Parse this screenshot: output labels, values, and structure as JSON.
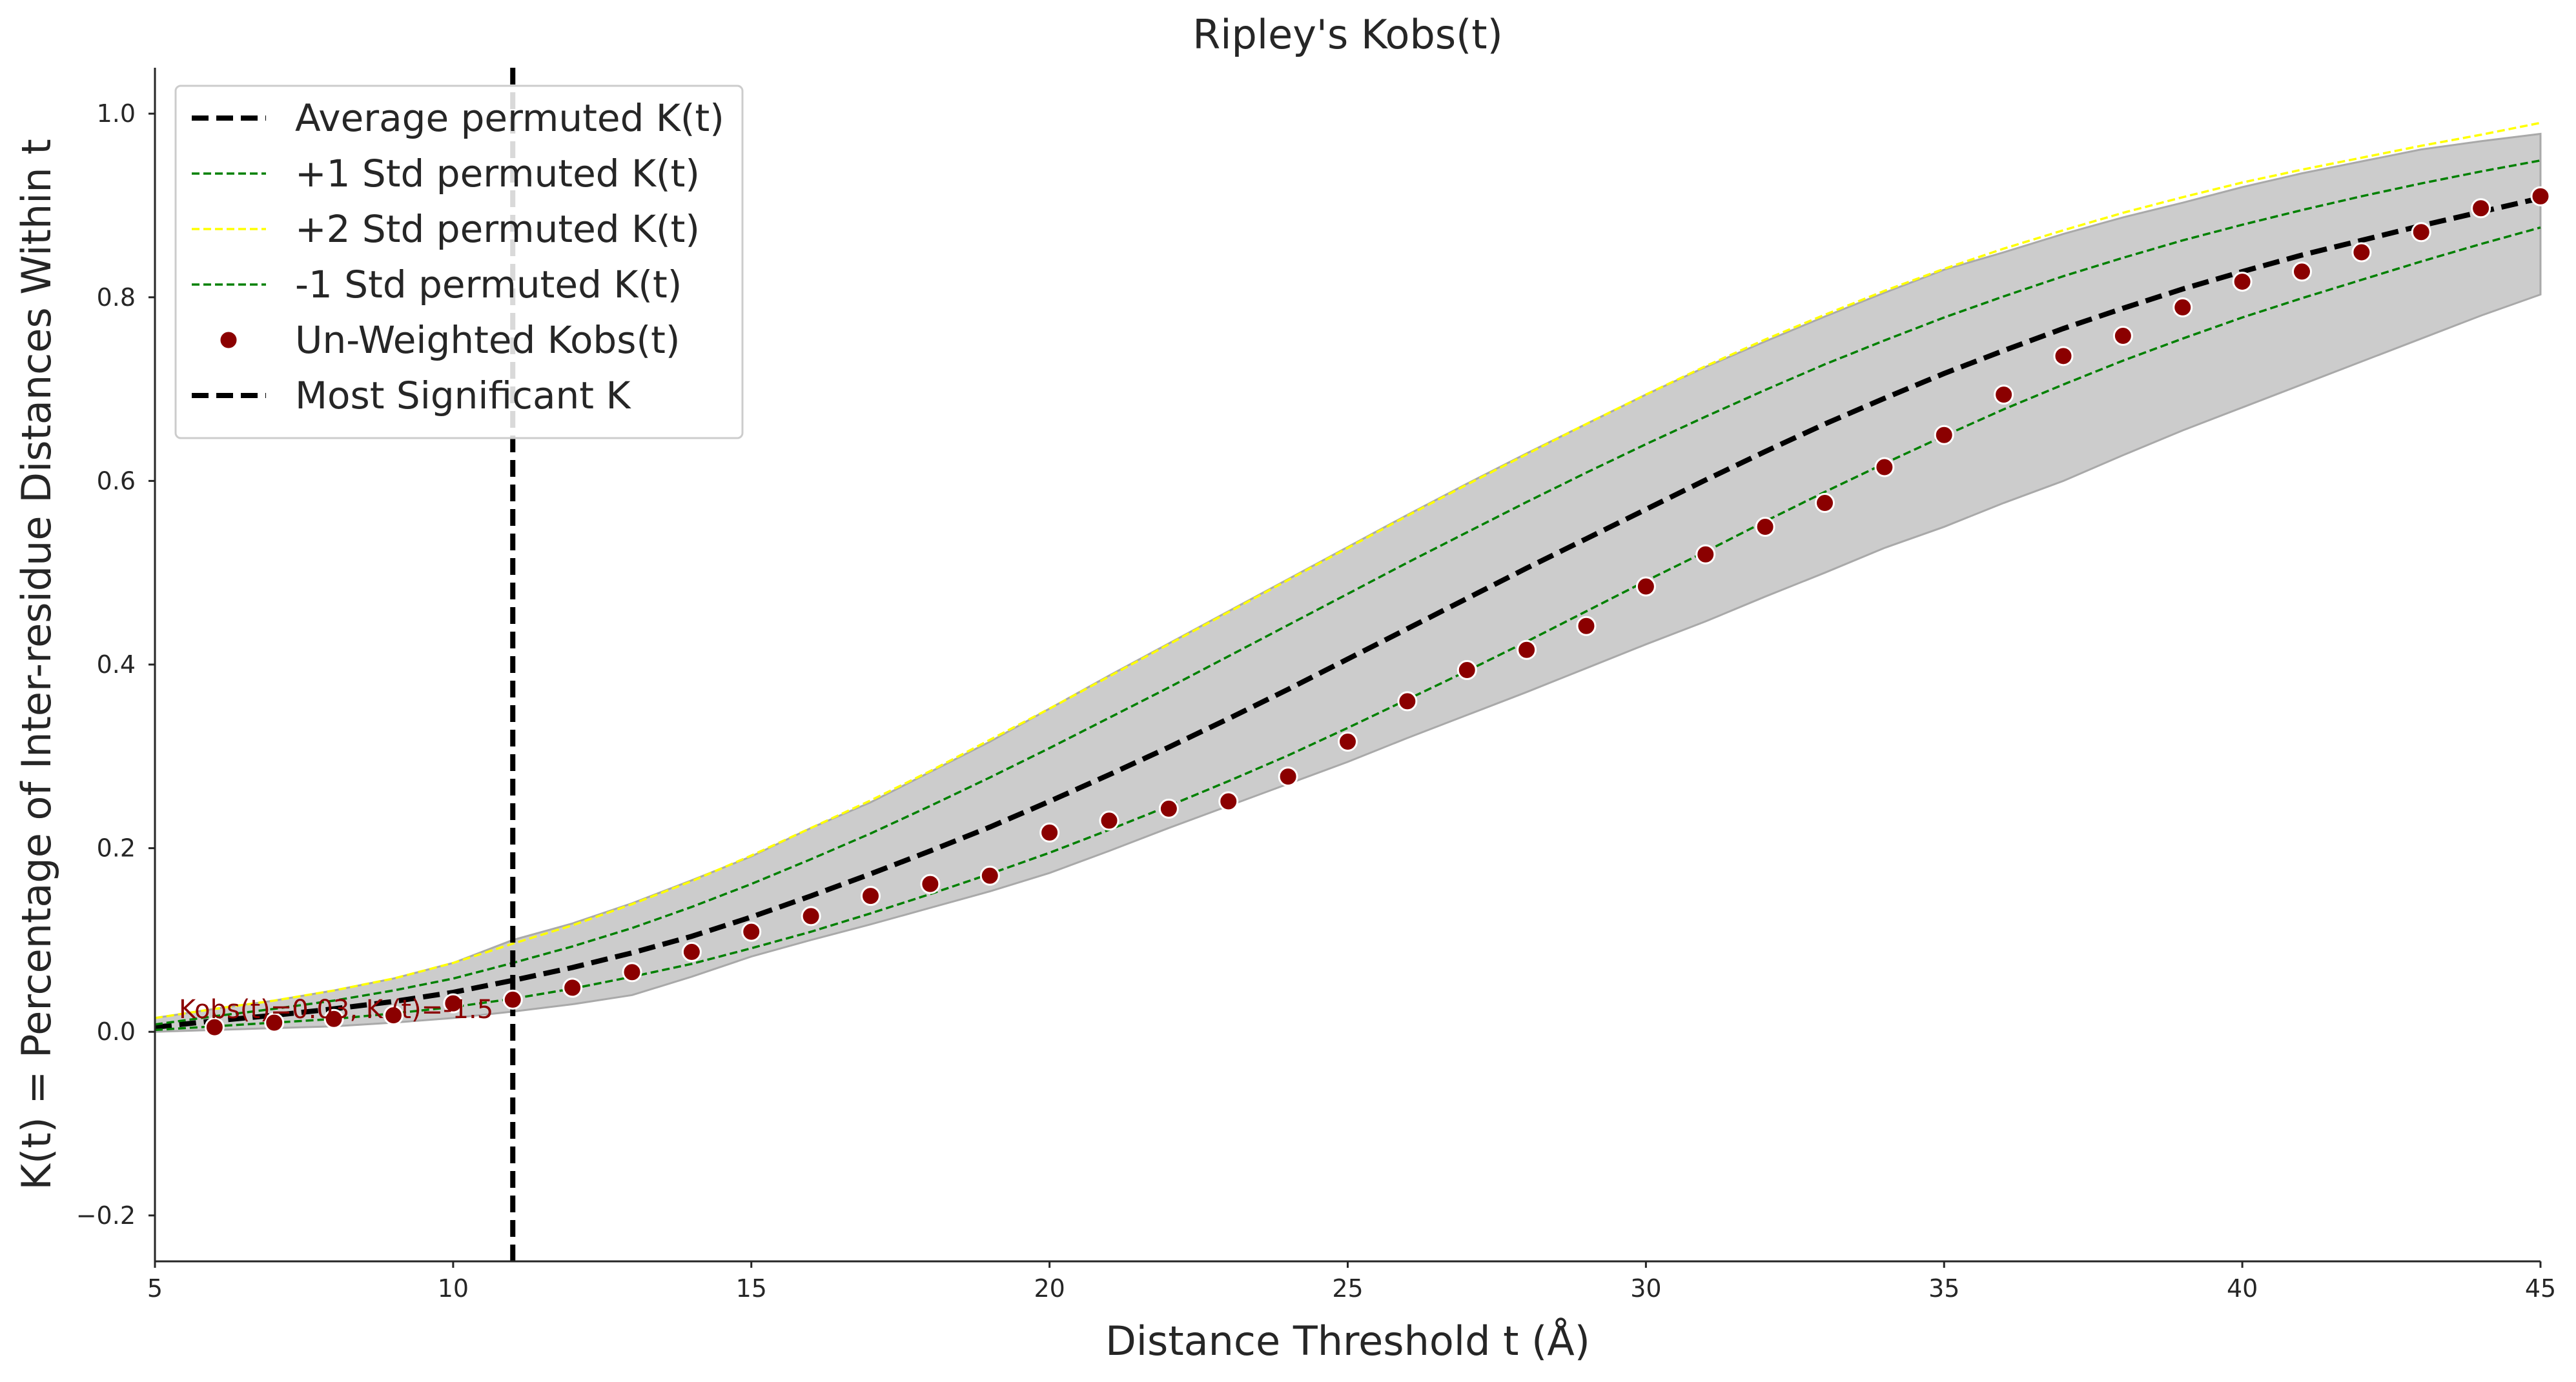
{
  "chart_data": {
    "type": "line",
    "title": "Ripley's Kobs(t)",
    "xlabel": "Distance Threshold t (Å)",
    "ylabel": "K(t) = Percentage of Inter-residue Distances Within t",
    "xlim": [
      5,
      45
    ],
    "ylim": [
      -0.25,
      1.05
    ],
    "xticks": [
      5,
      10,
      15,
      20,
      25,
      30,
      35,
      40,
      45
    ],
    "yticks": [
      -0.2,
      0.0,
      0.2,
      0.4,
      0.6,
      0.8,
      1.0
    ],
    "ytick_labels": [
      "−0.2",
      "0.0",
      "0.2",
      "0.4",
      "0.6",
      "0.8",
      "1.0"
    ],
    "grid": false,
    "legend_position": "top-left",
    "x": [
      5,
      6,
      7,
      8,
      9,
      10,
      11,
      12,
      13,
      14,
      15,
      16,
      17,
      18,
      19,
      20,
      21,
      22,
      23,
      24,
      25,
      26,
      27,
      28,
      29,
      30,
      31,
      32,
      33,
      34,
      35,
      36,
      37,
      38,
      39,
      40,
      41,
      42,
      43,
      44,
      45
    ],
    "series": [
      {
        "name": "Average permuted K(t)",
        "style": "dashed-bold",
        "color": "#000000",
        "values": [
          0.005,
          0.012,
          0.018,
          0.025,
          0.033,
          0.043,
          0.056,
          0.07,
          0.086,
          0.104,
          0.125,
          0.148,
          0.172,
          0.197,
          0.223,
          0.251,
          0.28,
          0.31,
          0.341,
          0.373,
          0.406,
          0.439,
          0.472,
          0.505,
          0.537,
          0.569,
          0.601,
          0.632,
          0.662,
          0.69,
          0.717,
          0.742,
          0.766,
          0.788,
          0.809,
          0.828,
          0.846,
          0.862,
          0.878,
          0.893,
          0.908
        ]
      },
      {
        "name": "+1 Std permuted K(t)",
        "style": "dashed",
        "color": "#008000",
        "values": [
          0.008,
          0.017,
          0.025,
          0.034,
          0.045,
          0.058,
          0.075,
          0.093,
          0.113,
          0.136,
          0.161,
          0.188,
          0.216,
          0.246,
          0.277,
          0.309,
          0.342,
          0.375,
          0.409,
          0.443,
          0.477,
          0.511,
          0.544,
          0.577,
          0.609,
          0.64,
          0.67,
          0.699,
          0.727,
          0.753,
          0.778,
          0.801,
          0.823,
          0.843,
          0.862,
          0.879,
          0.895,
          0.91,
          0.924,
          0.937,
          0.949
        ]
      },
      {
        "name": "+2 Std permuted K(t)",
        "style": "dashed",
        "color": "#ffff00",
        "values": [
          0.015,
          0.025,
          0.034,
          0.045,
          0.058,
          0.075,
          0.096,
          0.116,
          0.139,
          0.164,
          0.192,
          0.222,
          0.252,
          0.284,
          0.318,
          0.352,
          0.387,
          0.422,
          0.457,
          0.492,
          0.527,
          0.562,
          0.596,
          0.629,
          0.662,
          0.694,
          0.725,
          0.754,
          0.781,
          0.807,
          0.831,
          0.853,
          0.873,
          0.892,
          0.909,
          0.925,
          0.939,
          0.952,
          0.965,
          0.977,
          0.99
        ]
      },
      {
        "name": "-1 Std permuted K(t)",
        "style": "dashed",
        "color": "#008000",
        "values": [
          0.002,
          0.006,
          0.01,
          0.014,
          0.02,
          0.027,
          0.036,
          0.047,
          0.06,
          0.074,
          0.091,
          0.109,
          0.129,
          0.15,
          0.172,
          0.195,
          0.22,
          0.246,
          0.273,
          0.301,
          0.331,
          0.362,
          0.393,
          0.425,
          0.458,
          0.491,
          0.523,
          0.556,
          0.588,
          0.619,
          0.649,
          0.678,
          0.705,
          0.731,
          0.755,
          0.778,
          0.799,
          0.819,
          0.839,
          0.858,
          0.876
        ]
      }
    ],
    "band": {
      "upper": [
        0.015,
        0.025,
        0.034,
        0.045,
        0.058,
        0.075,
        0.1,
        0.118,
        0.14,
        0.165,
        0.191,
        0.222,
        0.25,
        0.283,
        0.316,
        0.352,
        0.388,
        0.423,
        0.458,
        0.493,
        0.528,
        0.563,
        0.597,
        0.63,
        0.662,
        0.694,
        0.724,
        0.752,
        0.779,
        0.805,
        0.83,
        0.849,
        0.869,
        0.887,
        0.903,
        0.92,
        0.935,
        0.948,
        0.961,
        0.97,
        0.978
      ],
      "lower": [
        0.0,
        0.002,
        0.004,
        0.006,
        0.01,
        0.015,
        0.022,
        0.03,
        0.04,
        0.06,
        0.082,
        0.1,
        0.117,
        0.135,
        0.153,
        0.173,
        0.197,
        0.222,
        0.246,
        0.27,
        0.294,
        0.32,
        0.345,
        0.37,
        0.396,
        0.422,
        0.447,
        0.474,
        0.5,
        0.527,
        0.55,
        0.576,
        0.6,
        0.628,
        0.655,
        0.68,
        0.705,
        0.73,
        0.755,
        0.78,
        0.803
      ],
      "color": "#cccccc"
    },
    "scatter": {
      "name": "Un-Weighted Kobs(t)",
      "color": "#8b0000",
      "x": [
        6,
        7,
        8,
        9,
        10,
        11,
        12,
        13,
        14,
        15,
        16,
        17,
        18,
        19,
        20,
        21,
        22,
        23,
        24,
        25,
        26,
        27,
        28,
        29,
        30,
        31,
        32,
        33,
        34,
        35,
        36,
        37,
        38,
        39,
        40,
        41,
        42,
        43,
        44,
        45
      ],
      "values": [
        0.005,
        0.01,
        0.014,
        0.018,
        0.031,
        0.035,
        0.048,
        0.065,
        0.087,
        0.109,
        0.126,
        0.148,
        0.161,
        0.17,
        0.217,
        0.23,
        0.243,
        0.251,
        0.278,
        0.316,
        0.36,
        0.394,
        0.416,
        0.442,
        0.485,
        0.52,
        0.55,
        0.576,
        0.615,
        0.65,
        0.694,
        0.736,
        0.758,
        0.789,
        0.817,
        0.828,
        0.849,
        0.871,
        0.897,
        0.91
      ]
    },
    "vline": {
      "name": "Most Significant K",
      "x": 11,
      "color": "#000000"
    },
    "annotation": {
      "text": "Kobs(t)=0.03, K (t)=-1.5",
      "x": 5.4,
      "y": 0.015
    }
  }
}
